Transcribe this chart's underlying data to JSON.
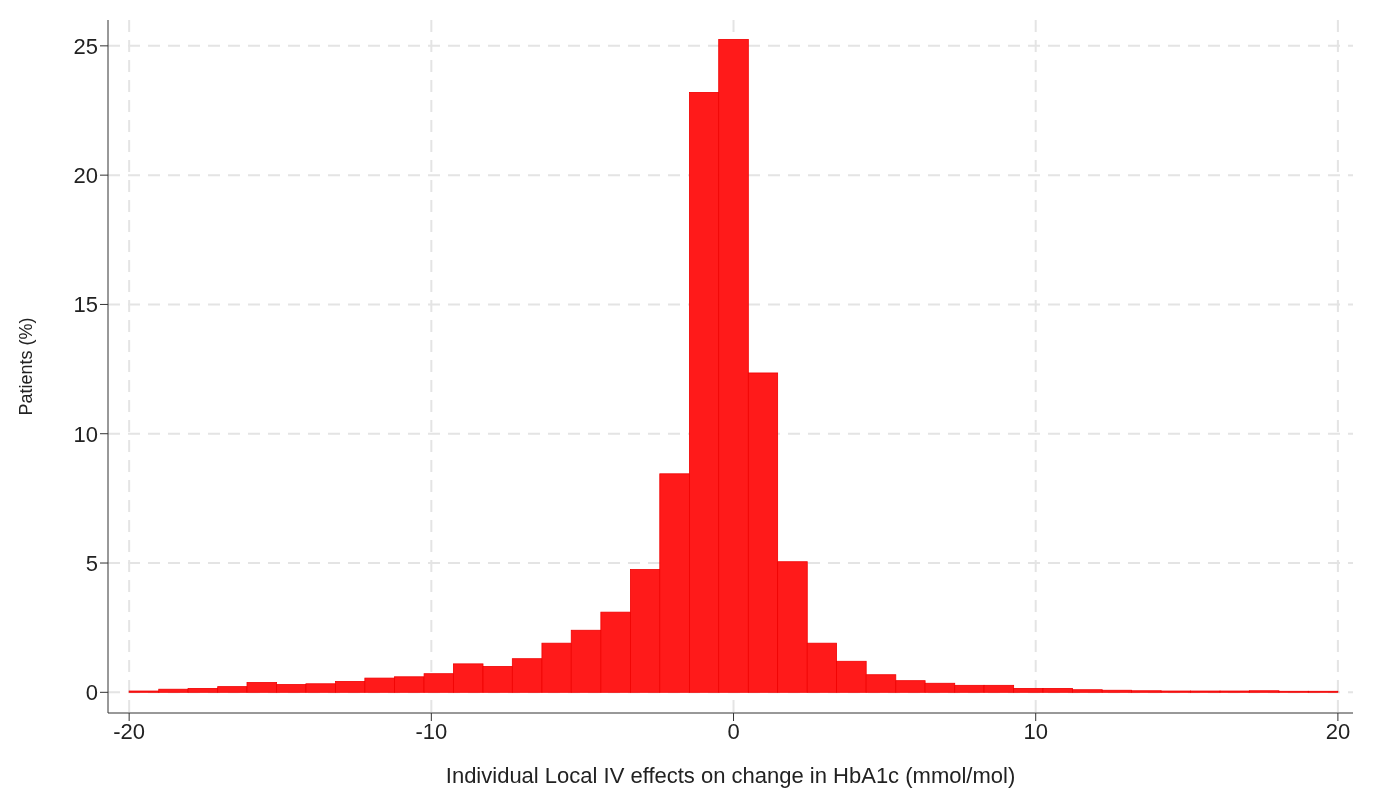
{
  "chart_data": {
    "type": "histogram",
    "xlabel": "Individual Local IV effects on change in HbA1c (mmol/mol)",
    "ylabel": "Patients (%)",
    "bins": [
      -20,
      -19.02,
      -18.05,
      -17.07,
      -16.1,
      -15.12,
      -14.15,
      -13.17,
      -12.2,
      -11.22,
      -10.24,
      -9.27,
      -8.29,
      -7.32,
      -6.34,
      -5.37,
      -4.39,
      -3.41,
      -2.44,
      -1.46,
      -0.49,
      0.49,
      1.46,
      2.44,
      3.41,
      4.39,
      5.37,
      6.34,
      7.32,
      8.29,
      9.27,
      10.24,
      11.22,
      12.2,
      13.17,
      14.15,
      15.12,
      16.1,
      17.07,
      18.05,
      19.02,
      20
    ],
    "values": [
      0.05,
      0.12,
      0.15,
      0.22,
      0.38,
      0.3,
      0.33,
      0.42,
      0.55,
      0.6,
      0.72,
      1.1,
      1.0,
      1.3,
      1.9,
      2.4,
      3.1,
      4.75,
      8.45,
      23.2,
      25.25,
      12.35,
      5.05,
      1.9,
      1.2,
      0.68,
      0.45,
      0.35,
      0.27,
      0.27,
      0.15,
      0.15,
      0.1,
      0.08,
      0.06,
      0.05,
      0.05,
      0.05,
      0.06,
      0.04,
      0.04
    ],
    "color": "#ff1a1a",
    "xlim": [
      -20.7,
      20.5
    ],
    "xticks": [
      -20,
      -10,
      0,
      10,
      20
    ],
    "ylim": [
      -0.8,
      26
    ],
    "yticks": [
      0,
      5,
      10,
      15,
      20,
      25
    ],
    "grid": true
  }
}
